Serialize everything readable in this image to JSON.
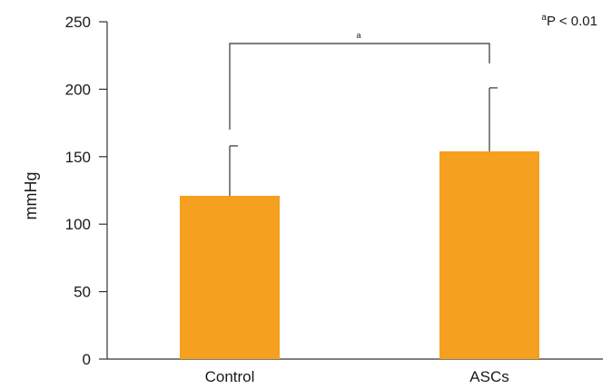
{
  "chart_data": {
    "type": "bar",
    "categories": [
      "Control",
      "ASCs"
    ],
    "values": [
      121,
      154
    ],
    "errors": [
      37,
      47
    ],
    "ylabel": "mmHg",
    "xlabel": "",
    "ylim": [
      0,
      250
    ],
    "yticks": [
      0,
      50,
      100,
      150,
      200,
      250
    ],
    "bar_color": "#F5A01E",
    "grid": false,
    "significance": {
      "marker": "a",
      "note_marker": "a",
      "note_text": "P < 0.01"
    }
  }
}
